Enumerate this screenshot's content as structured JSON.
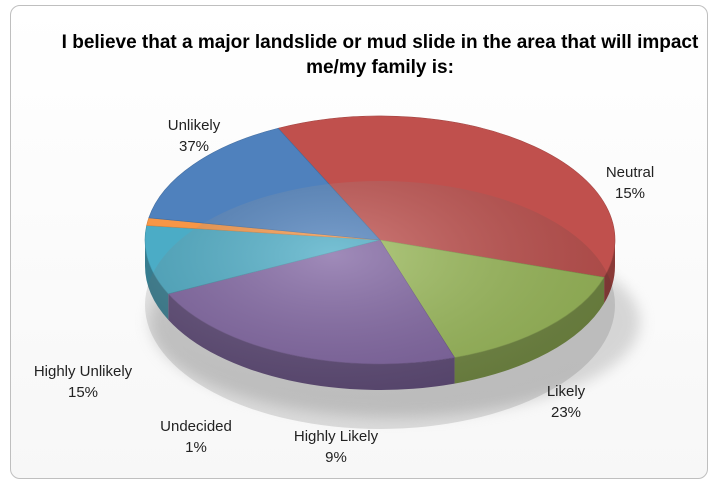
{
  "chart_data": {
    "type": "pie",
    "title": "I believe that a major landslide or mud slide in the area that will impact me/my family is:",
    "slices": [
      {
        "label": "Unlikely",
        "value": 37,
        "pct": "37%",
        "color": "#c0504d"
      },
      {
        "label": "Neutral",
        "value": 15,
        "pct": "15%",
        "color": "#9bbb59"
      },
      {
        "label": "Likely",
        "value": 23,
        "pct": "23%",
        "color": "#8064a2"
      },
      {
        "label": "Highly Likely",
        "value": 9,
        "pct": "9%",
        "color": "#4bacc6"
      },
      {
        "label": "Undecided",
        "value": 1,
        "pct": "1%",
        "color": "#f79646"
      },
      {
        "label": "Highly Unlikely",
        "value": 15,
        "pct": "15%",
        "color": "#4f81bd"
      }
    ],
    "legend": "none",
    "style": "3d"
  }
}
